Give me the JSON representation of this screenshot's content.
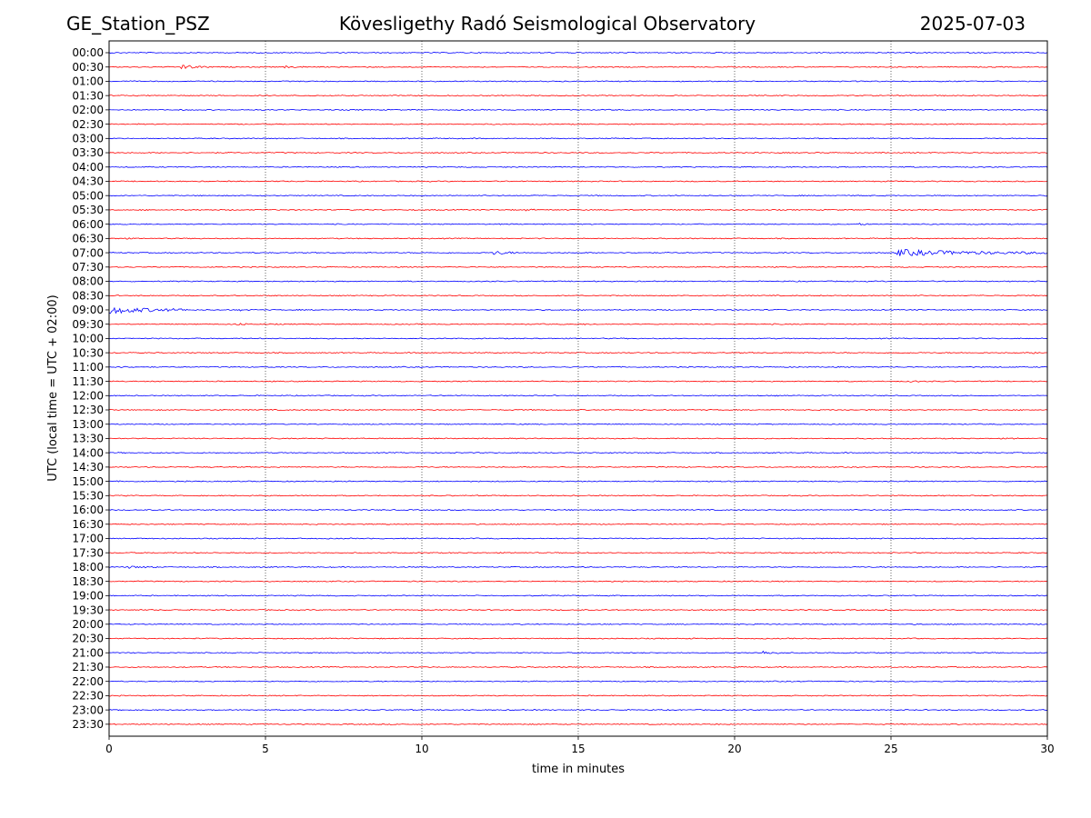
{
  "header": {
    "station": "GE_Station_PSZ",
    "observatory": "Kövesligethy Radó Seismological Observatory",
    "date": "2025-07-03"
  },
  "chart_data": {
    "type": "line",
    "title": "Kövesligethy Radó Seismological Observatory",
    "xlabel": "time in minutes",
    "ylabel": "UTC (local time = UTC + 02:00)",
    "xlim": [
      0,
      30
    ],
    "x_ticks": [
      "0",
      "5",
      "10",
      "15",
      "20",
      "25",
      "30"
    ],
    "grid": "vertical dotted at 5, 10, 15, 20, 25",
    "colors": {
      "even_trace": "#0000ff",
      "odd_trace": "#ff0000",
      "grid": "#000000"
    },
    "rows": [
      "00:00",
      "00:30",
      "01:00",
      "01:30",
      "02:00",
      "02:30",
      "03:00",
      "03:30",
      "04:00",
      "04:30",
      "05:00",
      "05:30",
      "06:00",
      "06:30",
      "07:00",
      "07:30",
      "08:00",
      "08:30",
      "09:00",
      "09:30",
      "10:00",
      "10:30",
      "11:00",
      "11:30",
      "12:00",
      "12:30",
      "13:00",
      "13:30",
      "14:00",
      "14:30",
      "15:00",
      "15:30",
      "16:00",
      "16:30",
      "17:00",
      "17:30",
      "18:00",
      "18:30",
      "19:00",
      "19:30",
      "20:00",
      "20:30",
      "21:00",
      "21:30",
      "22:00",
      "22:30",
      "23:00",
      "23:30"
    ],
    "events": [
      {
        "row": "00:30",
        "start_min": 2.3,
        "dur_min": 1.0,
        "amp": 0.6
      },
      {
        "row": "00:30",
        "start_min": 5.6,
        "dur_min": 0.8,
        "amp": 0.25
      },
      {
        "row": "00:30",
        "start_min": 25.7,
        "dur_min": 0.3,
        "amp": 0.15
      },
      {
        "row": "05:30",
        "start_min": 13.3,
        "dur_min": 0.3,
        "amp": 0.25
      },
      {
        "row": "06:00",
        "start_min": 24.0,
        "dur_min": 0.3,
        "amp": 0.25
      },
      {
        "row": "06:30",
        "start_min": 0.3,
        "dur_min": 0.4,
        "amp": 0.2
      },
      {
        "row": "07:00",
        "start_min": 12.3,
        "dur_min": 0.8,
        "amp": 0.6
      },
      {
        "row": "07:00",
        "start_min": 25.2,
        "dur_min": 4.8,
        "amp": 0.9
      },
      {
        "row": "07:30",
        "start_min": 0.3,
        "dur_min": 0.4,
        "amp": 0.15
      },
      {
        "row": "09:00",
        "start_min": 0.0,
        "dur_min": 2.5,
        "amp": 1.1
      },
      {
        "row": "09:00",
        "start_min": 4.2,
        "dur_min": 0.3,
        "amp": 0.25
      },
      {
        "row": "09:30",
        "start_min": 4.0,
        "dur_min": 0.6,
        "amp": 0.35
      },
      {
        "row": "09:30",
        "start_min": 15.2,
        "dur_min": 0.4,
        "amp": 0.15
      },
      {
        "row": "10:30",
        "start_min": 29.5,
        "dur_min": 0.4,
        "amp": 0.25
      },
      {
        "row": "11:00",
        "start_min": 0.2,
        "dur_min": 0.6,
        "amp": 0.2
      },
      {
        "row": "11:30",
        "start_min": 25.6,
        "dur_min": 0.3,
        "amp": 0.25
      },
      {
        "row": "13:30",
        "start_min": 28.9,
        "dur_min": 0.3,
        "amp": 0.2
      },
      {
        "row": "18:00",
        "start_min": 0.6,
        "dur_min": 0.9,
        "amp": 0.3
      },
      {
        "row": "21:00",
        "start_min": 20.9,
        "dur_min": 0.8,
        "amp": 0.45
      }
    ]
  }
}
